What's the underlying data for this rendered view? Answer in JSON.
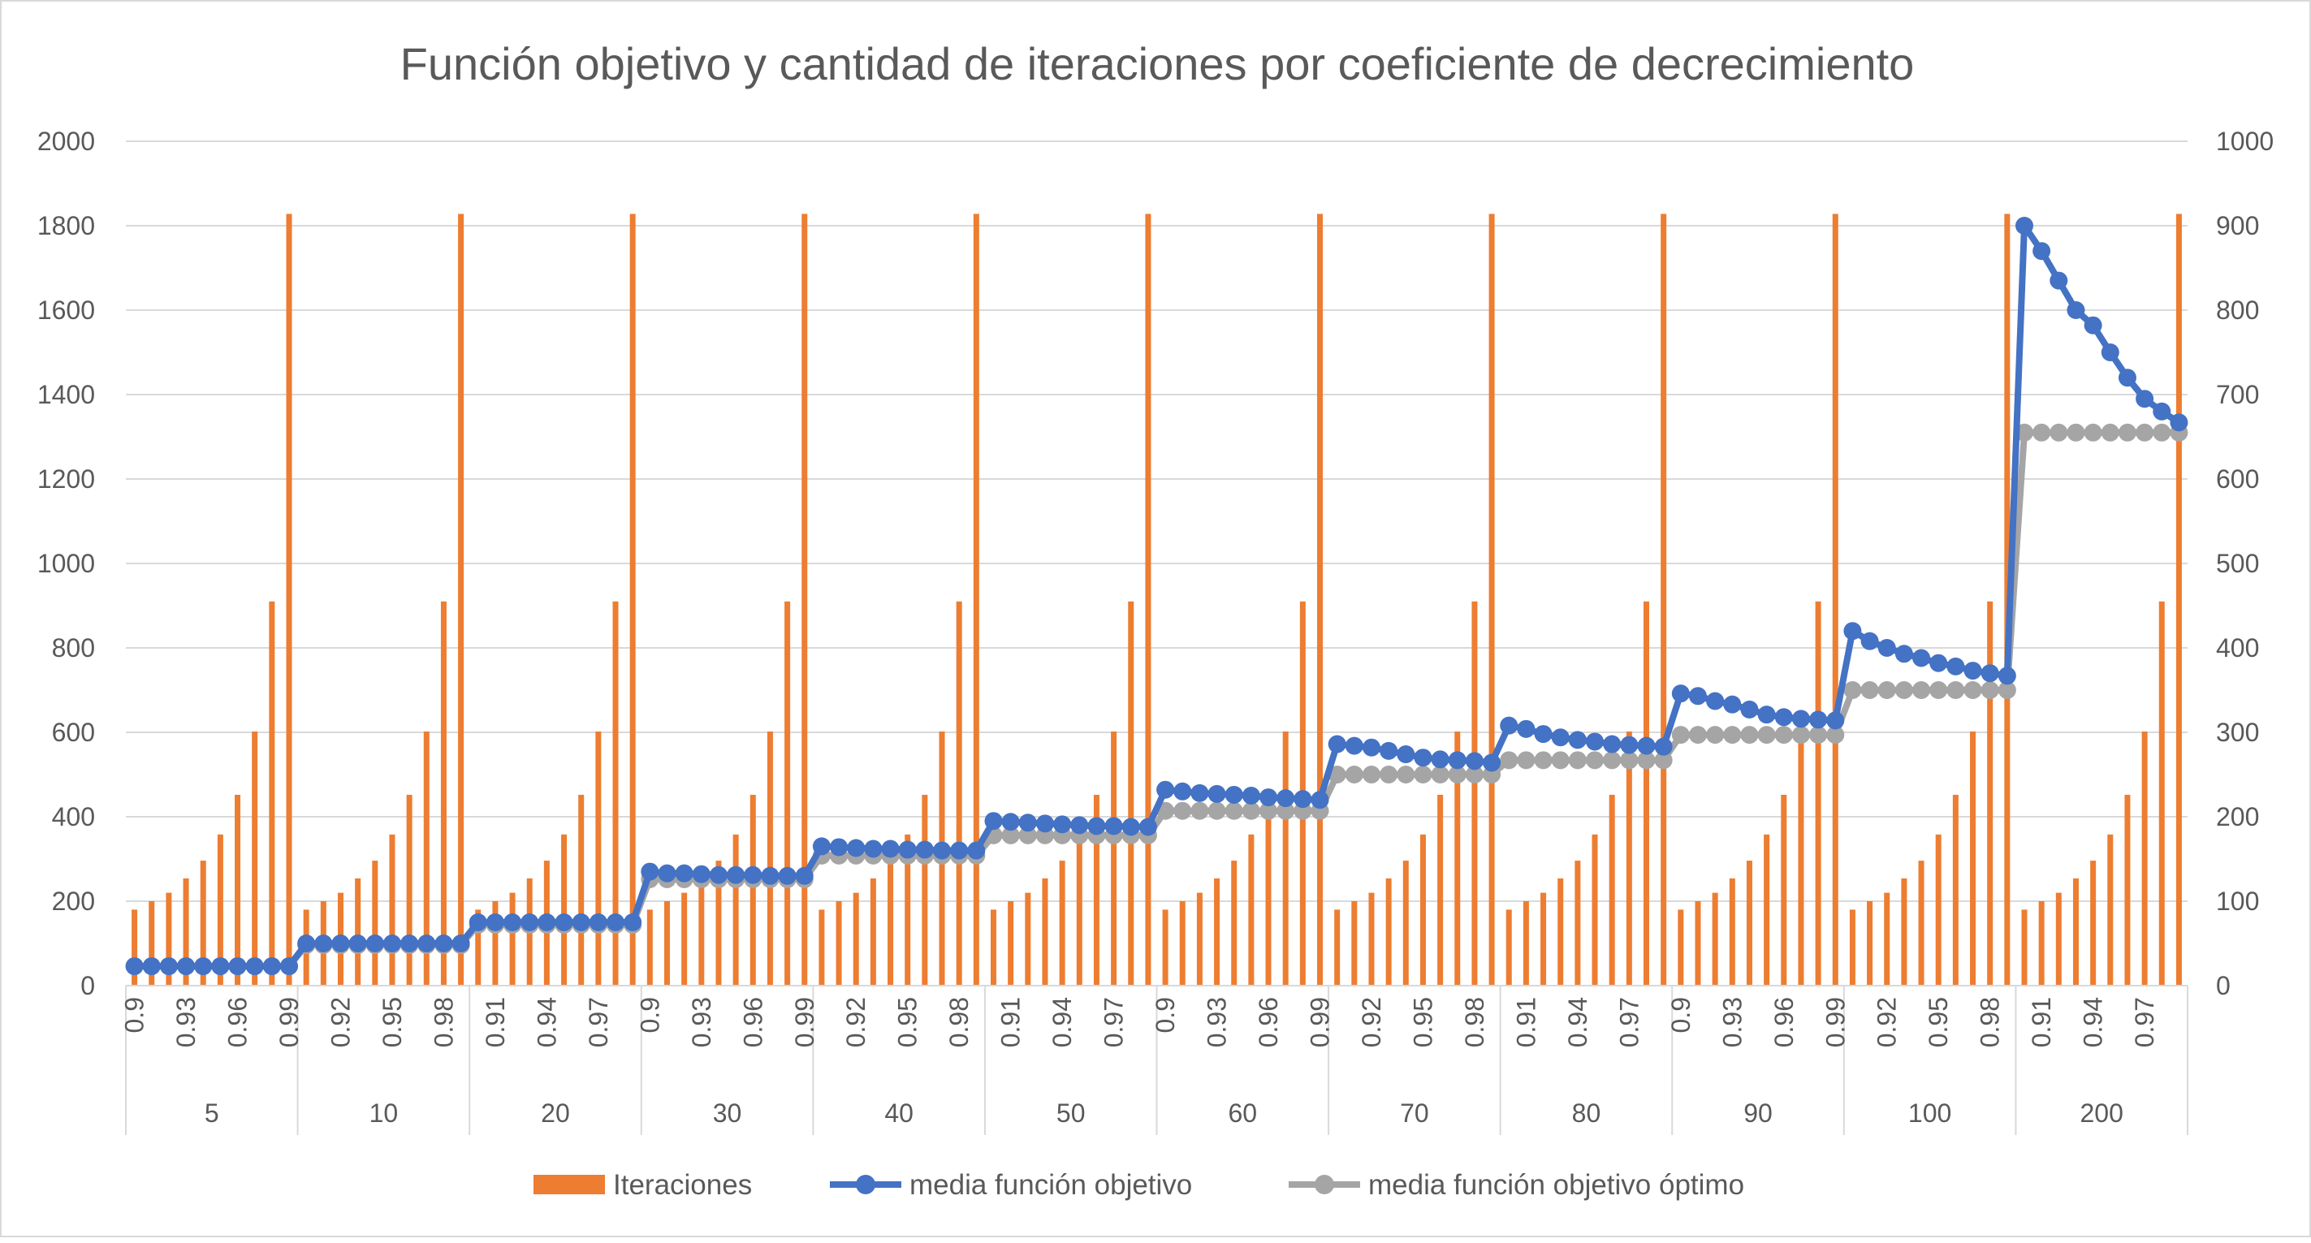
{
  "chart_data": {
    "type": "bar",
    "title": "Función objetivo y cantidad de iteraciones por coeficiente de decrecimiento",
    "colors": {
      "bars": "#ED7D31",
      "line1": "#4472C4",
      "line2": "#A5A5A5",
      "grid": "#d9d9d9",
      "text": "#595959"
    },
    "y_left": {
      "min": 0,
      "max": 2000,
      "step": 200,
      "ticks": [
        "0",
        "200",
        "400",
        "600",
        "800",
        "1000",
        "1200",
        "1400",
        "1600",
        "1800",
        "2000"
      ]
    },
    "y_right": {
      "min": 0,
      "max": 1000,
      "step": 100,
      "ticks": [
        "0",
        "100",
        "200",
        "300",
        "400",
        "500",
        "600",
        "700",
        "800",
        "900",
        "1000"
      ]
    },
    "grid": true,
    "legend_position": "bottom",
    "coefficients": [
      "0.9",
      "0.91",
      "0.92",
      "0.93",
      "0.94",
      "0.95",
      "0.96",
      "0.97",
      "0.98",
      "0.99"
    ],
    "tick_label_sets": {
      "a": [
        "0.9",
        "0.93",
        "0.96",
        "0.99"
      ],
      "b": [
        "0.92",
        "0.95",
        "0.98"
      ],
      "c": [
        "0.91",
        "0.94",
        "0.97"
      ]
    },
    "groups": [
      {
        "label": "5",
        "tick_set": "a",
        "opt": [
          23,
          23,
          23,
          23,
          23,
          23,
          23,
          23,
          23,
          23
        ],
        "mean": [
          23,
          23,
          23,
          23,
          23,
          23,
          23,
          23,
          23,
          23
        ]
      },
      {
        "label": "10",
        "tick_set": "b",
        "opt": [
          48,
          48,
          48,
          48,
          48,
          48,
          48,
          48,
          48,
          48
        ],
        "mean": [
          50,
          50,
          50,
          50,
          50,
          50,
          50,
          50,
          50,
          50
        ]
      },
      {
        "label": "20",
        "tick_set": "c",
        "opt": [
          72,
          72,
          72,
          72,
          72,
          72,
          72,
          72,
          72,
          72
        ],
        "mean": [
          75,
          75,
          75,
          75,
          75,
          75,
          75,
          75,
          75,
          75
        ]
      },
      {
        "label": "30",
        "tick_set": "a",
        "opt": [
          126,
          126,
          126,
          126,
          126,
          126,
          126,
          126,
          126,
          126
        ],
        "mean": [
          135,
          133,
          133,
          132,
          131,
          131,
          131,
          130,
          130,
          130
        ]
      },
      {
        "label": "40",
        "tick_set": "b",
        "opt": [
          154,
          154,
          154,
          154,
          154,
          154,
          154,
          154,
          154,
          154
        ],
        "mean": [
          165,
          164,
          163,
          162,
          162,
          161,
          161,
          160,
          160,
          160
        ]
      },
      {
        "label": "50",
        "tick_set": "c",
        "opt": [
          178,
          178,
          178,
          178,
          178,
          178,
          178,
          178,
          178,
          178
        ],
        "mean": [
          195,
          194,
          193,
          192,
          191,
          190,
          189,
          189,
          188,
          188
        ]
      },
      {
        "label": "60",
        "tick_set": "a",
        "opt": [
          207,
          207,
          207,
          207,
          207,
          207,
          207,
          207,
          207,
          207
        ],
        "mean": [
          232,
          230,
          228,
          227,
          226,
          225,
          223,
          222,
          221,
          220
        ]
      },
      {
        "label": "70",
        "tick_set": "b",
        "opt": [
          250,
          250,
          250,
          250,
          250,
          250,
          250,
          250,
          250,
          250
        ],
        "mean": [
          286,
          284,
          282,
          278,
          274,
          270,
          268,
          267,
          266,
          264
        ]
      },
      {
        "label": "80",
        "tick_set": "c",
        "opt": [
          267,
          267,
          267,
          267,
          267,
          267,
          267,
          267,
          267,
          267
        ],
        "mean": [
          308,
          304,
          298,
          294,
          291,
          289,
          286,
          285,
          284,
          283
        ]
      },
      {
        "label": "90",
        "tick_set": "a",
        "opt": [
          297,
          297,
          297,
          297,
          297,
          297,
          297,
          297,
          297,
          297
        ],
        "mean": [
          346,
          343,
          337,
          333,
          327,
          321,
          318,
          316,
          315,
          314
        ]
      },
      {
        "label": "100",
        "tick_set": "b",
        "opt": [
          350,
          350,
          350,
          350,
          350,
          350,
          350,
          350,
          350,
          350
        ],
        "mean": [
          420,
          408,
          400,
          393,
          388,
          382,
          378,
          373,
          370,
          367
        ]
      },
      {
        "label": "200",
        "tick_set": "c",
        "opt": [
          655,
          655,
          655,
          655,
          655,
          655,
          655,
          655,
          655,
          655
        ],
        "mean": [
          900,
          870,
          835,
          800,
          782,
          750,
          720,
          695,
          680,
          667
        ]
      }
    ],
    "iterations": [
      90,
      100,
      110,
      127,
      148,
      179,
      226,
      301,
      455,
      914
    ],
    "legend": [
      {
        "key": "bars",
        "name": "Iteraciones",
        "kind": "bar"
      },
      {
        "key": "line1",
        "name": "media función objetivo",
        "kind": "line"
      },
      {
        "key": "line2",
        "name": "media función objetivo óptimo",
        "kind": "line"
      }
    ]
  }
}
